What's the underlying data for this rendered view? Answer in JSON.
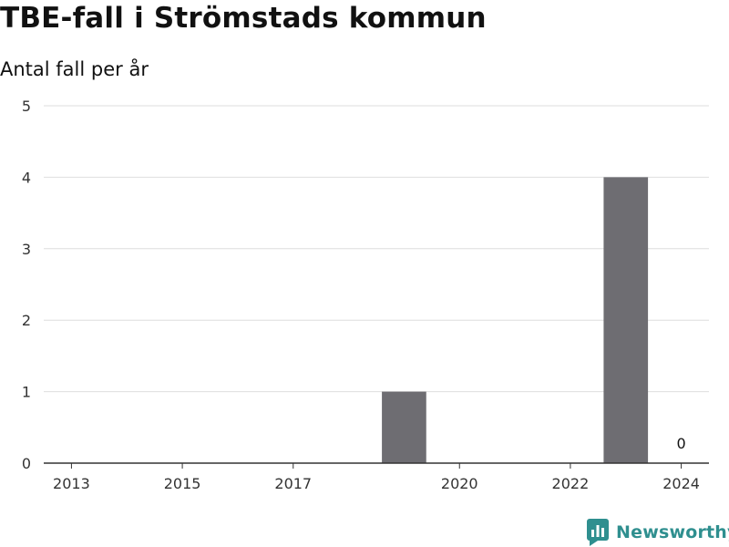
{
  "colors": {
    "bar": "#6e6d72",
    "grid": "#dedede",
    "axis": "#333333",
    "brand": "#2f8f8f"
  },
  "brand": {
    "name": "Newsworthy",
    "icon": "newsworthy-logo-icon"
  },
  "chart_data": {
    "type": "bar",
    "title": "TBE-fall i Strömstads kommun",
    "subtitle": "Antal fall per år",
    "xlabel": "",
    "ylabel": "",
    "categories": [
      "2013",
      "2014",
      "2015",
      "2016",
      "2017",
      "2018",
      "2019",
      "2020",
      "2021",
      "2022",
      "2023",
      "2024"
    ],
    "values": [
      0,
      0,
      0,
      0,
      0,
      0,
      1,
      0,
      0,
      0,
      4,
      0
    ],
    "x_tick_labels": [
      "2013",
      "2015",
      "2017",
      "2020",
      "2022",
      "2024"
    ],
    "y_ticks": [
      0,
      1,
      2,
      3,
      4,
      5
    ],
    "ylim": [
      0,
      5
    ],
    "grid": true,
    "legend": "none",
    "data_labels": [
      {
        "category": "2024",
        "text": "0"
      }
    ]
  }
}
